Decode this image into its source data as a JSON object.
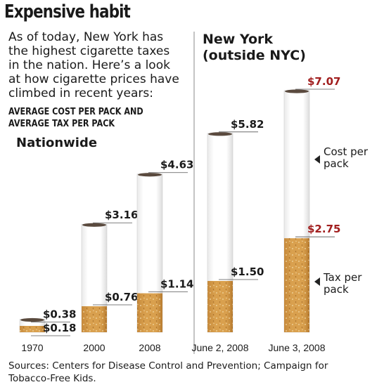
{
  "header": {
    "title": "Expensive habit",
    "intro_lines": [
      "As of today, New York has",
      "the highest cigarette taxes",
      "in the nation. Here’s a look",
      "at how cigarette prices have",
      "climbed in recent years:"
    ],
    "subhead_lines": [
      "AVERAGE COST PER PACK AND",
      "AVERAGE TAX PER PACK"
    ]
  },
  "section_labels": {
    "nationwide": "Nationwide",
    "new_york_lines": [
      "New York",
      "(outside NYC)"
    ]
  },
  "annotations": {
    "cost_lines": [
      "Cost per",
      "pack"
    ],
    "tax_lines": [
      "Tax per",
      "pack"
    ]
  },
  "footer": {
    "source_lines": [
      "Sources: Centers for Disease Control and Prevention; Campaign for",
      "Tobacco-Free Kids."
    ]
  },
  "colors": {
    "paper": "#ffffff",
    "filter": "#d9a04e",
    "highlight_label": "#a11e1e",
    "label": "#1a1a1a"
  },
  "chart_data": {
    "type": "bar",
    "categories": [
      "1970",
      "2000",
      "2008",
      "June 2, 2008",
      "June 3, 2008"
    ],
    "series": [
      {
        "name": "Cost per pack",
        "values": [
          0.38,
          3.16,
          4.63,
          5.82,
          7.07
        ],
        "labels": [
          "$0.38",
          "$3.16",
          "$4.63",
          "$5.82",
          "$7.07"
        ]
      },
      {
        "name": "Tax per pack",
        "values": [
          0.18,
          0.76,
          1.14,
          1.5,
          2.75
        ],
        "labels": [
          "$0.18",
          "$0.76",
          "$1.14",
          "$1.50",
          "$2.75"
        ]
      }
    ],
    "groups": [
      {
        "name": "Nationwide",
        "categories": [
          "1970",
          "2000",
          "2008"
        ]
      },
      {
        "name": "New York (outside NYC)",
        "categories": [
          "June 2, 2008",
          "June 3, 2008"
        ]
      }
    ],
    "highlighted_category": "June 3, 2008",
    "ylim": [
      0,
      7.07
    ]
  }
}
